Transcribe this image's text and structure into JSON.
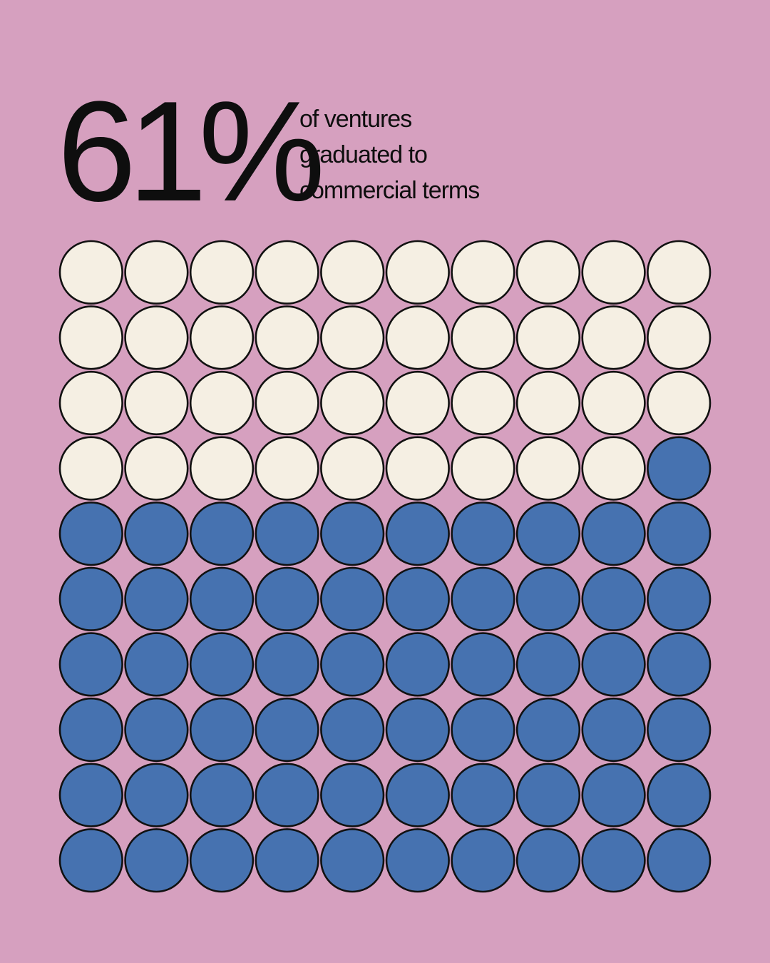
{
  "headline": {
    "stat": "61%",
    "caption_lines": [
      "of ventures",
      "graduated to",
      "commercial terms"
    ]
  },
  "colors": {
    "background": "#D6A0BF",
    "filled": "#4672B0",
    "empty": "#F5EFE3",
    "outline": "#111111",
    "text": "#0E0E0E"
  },
  "chart_data": {
    "type": "waffle",
    "value_percent": 61,
    "total_units": 100,
    "rows": 10,
    "columns": 10,
    "fill_order": "bottom-to-top, right-to-left"
  }
}
